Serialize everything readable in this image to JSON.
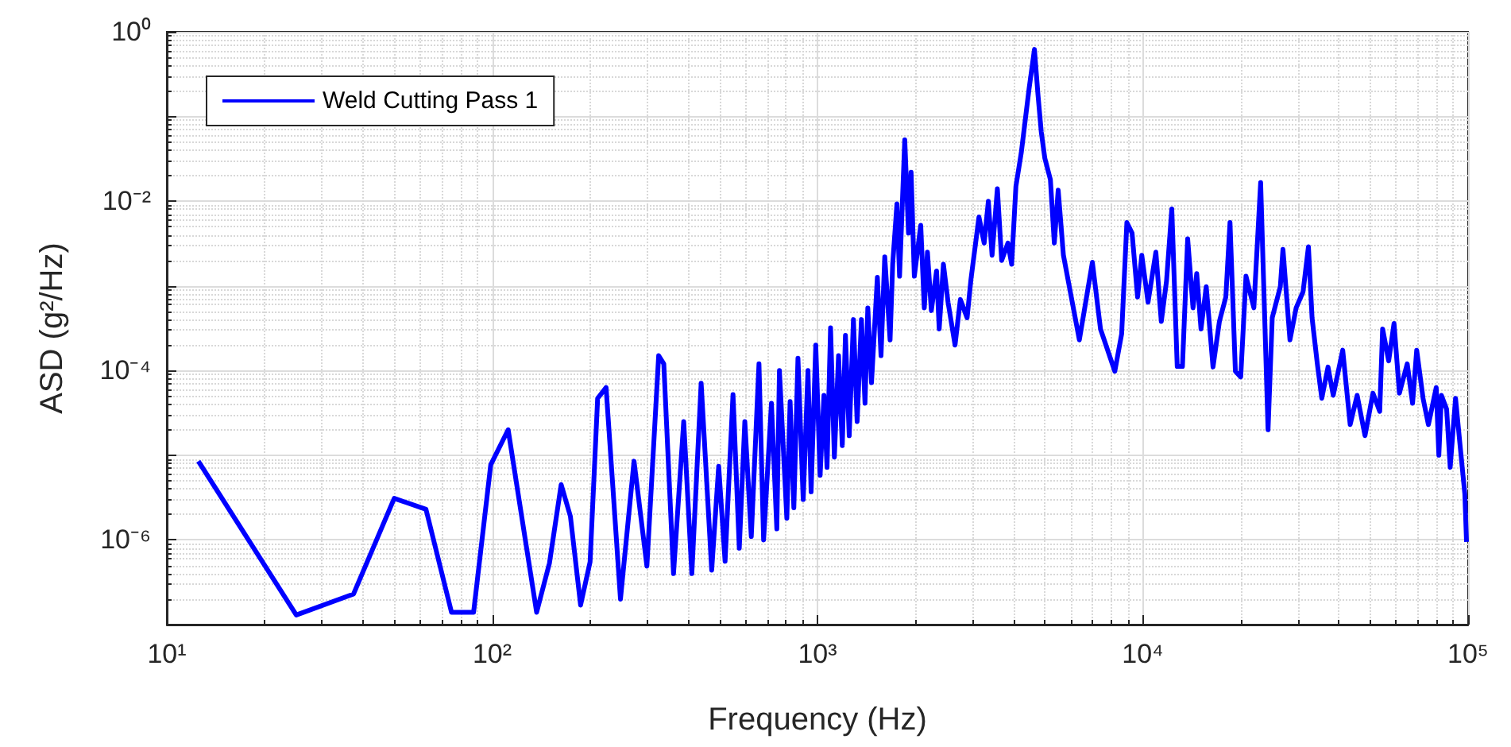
{
  "chart_data": {
    "type": "line",
    "xlabel": "Frequency (Hz)",
    "ylabel": "ASD (g²/Hz)",
    "log": "xy",
    "grid": true,
    "legend": "top left",
    "marker": "none",
    "line_style": "solid",
    "xlim": [
      10,
      100000
    ],
    "ylim": [
      1e-07,
      1
    ],
    "xticks": [
      {
        "value": 10,
        "label": "10¹"
      },
      {
        "value": 100,
        "label": "10²"
      },
      {
        "value": 1000,
        "label": "10³"
      },
      {
        "value": 10000,
        "label": "10⁴"
      },
      {
        "value": 100000,
        "label": "10⁵"
      }
    ],
    "yticks": [
      {
        "value": 1e-07,
        "label": null
      },
      {
        "value": 1e-06,
        "label": "10⁻⁶"
      },
      {
        "value": 1e-05,
        "label": null
      },
      {
        "value": 0.0001,
        "label": "10⁻⁴"
      },
      {
        "value": 0.001,
        "label": null
      },
      {
        "value": 0.01,
        "label": "10⁻²"
      },
      {
        "value": 0.1,
        "label": null
      },
      {
        "value": 1,
        "label": "10⁰"
      }
    ],
    "series": [
      {
        "name": "Weld Cutting Pass 1",
        "color": "#0000ff",
        "x": [
          12.5,
          25,
          37.5,
          50,
          62.6,
          75,
          87.7,
          99,
          112,
          137,
          150,
          163,
          174,
          187,
          200,
          211,
          224,
          248,
          273,
          299,
          325,
          337,
          361,
          388,
          411,
          439,
          473,
          497,
          520,
          550,
          575,
          598,
          626,
          661,
          683,
          722,
          750,
          764,
          805,
          824,
          846,
          871,
          904,
          935,
          956,
          988,
          1019,
          1047,
          1070,
          1097,
          1127,
          1161,
          1192,
          1219,
          1252,
          1290,
          1324,
          1365,
          1400,
          1428,
          1466,
          1528,
          1568,
          1610,
          1672,
          1703,
          1755,
          1788,
          1855,
          1905,
          1940,
          1985,
          2077,
          2130,
          2178,
          2239,
          2323,
          2367,
          2439,
          2520,
          2648,
          2749,
          2884,
          2964,
          3136,
          3254,
          3352,
          3441,
          3573,
          3683,
          3850,
          3953,
          4074,
          4230,
          4359,
          4470,
          4645,
          4763,
          4874,
          5000,
          5200,
          5346,
          5495,
          5702,
          6383,
          7000,
          7413,
          8204,
          8610,
          8935,
          9270,
          9638,
          9930,
          10380,
          10970,
          11400,
          11830,
          12280,
          12760,
          13240,
          13740,
          14270,
          14650,
          15100,
          15670,
          16440,
          17200,
          18000,
          18540,
          19260,
          20000,
          20760,
          21950,
          23030,
          24270,
          25000,
          26470,
          26970,
          28340,
          29610,
          31090,
          32300,
          33140,
          34400,
          35500,
          37100,
          38500,
          41170,
          43400,
          45600,
          48200,
          51000,
          53500,
          54600,
          57000,
          59200,
          61500,
          65000,
          67500,
          69500,
          72700,
          75500,
          79800,
          81300,
          82800,
          85900,
          88100,
          91500,
          94500,
          97700,
          98900
        ],
        "values": [
          8.5e-06,
          1.3e-07,
          2.3e-07,
          3.1e-06,
          2.3e-06,
          1.4e-07,
          1.4e-07,
          7.7e-06,
          2e-05,
          1.4e-07,
          5.3e-07,
          4.5e-06,
          1.9e-06,
          1.7e-07,
          5.5e-07,
          4.7e-05,
          6.3e-05,
          2e-07,
          8.5e-06,
          4.9e-07,
          0.00015,
          0.00012,
          4e-07,
          2.5e-05,
          4e-07,
          7.1e-05,
          4.4e-07,
          7.4e-06,
          5.6e-07,
          5.2e-05,
          8e-07,
          2.5e-05,
          1.1e-06,
          0.00012,
          1e-06,
          4.1e-05,
          1.35e-06,
          0.0001,
          1.8e-06,
          4.3e-05,
          2.4e-06,
          0.00014,
          3e-06,
          0.0001,
          3.7e-06,
          0.0002,
          5.8e-06,
          5.1e-05,
          7.2e-06,
          0.00032,
          9.5e-06,
          0.00015,
          1.3e-05,
          0.00026,
          1.7e-05,
          0.0004,
          2.5e-05,
          0.0004,
          4.1e-05,
          0.00055,
          7.2e-05,
          0.00126,
          0.00015,
          0.0022,
          0.00023,
          0.0018,
          0.0093,
          0.0013,
          0.053,
          0.0042,
          0.022,
          0.0013,
          0.0052,
          0.00055,
          0.0025,
          0.00051,
          0.0015,
          0.00031,
          0.0018,
          0.00064,
          0.0002,
          0.00069,
          0.00042,
          0.0012,
          0.0065,
          0.0032,
          0.01,
          0.0023,
          0.014,
          0.002,
          0.0032,
          0.0018,
          0.015,
          0.037,
          0.095,
          0.21,
          0.62,
          0.18,
          0.066,
          0.032,
          0.018,
          0.0032,
          0.0135,
          0.0023,
          0.00023,
          0.0019,
          0.00031,
          9.8e-05,
          0.00027,
          0.0056,
          0.0042,
          0.00074,
          0.0023,
          0.00064,
          0.0025,
          0.00038,
          0.00114,
          0.0081,
          0.000112,
          0.000112,
          0.0036,
          0.00055,
          0.0014,
          0.00031,
          0.00098,
          0.00011,
          0.00038,
          0.00074,
          0.0056,
          9.8e-05,
          8.4e-05,
          0.0013,
          0.00055,
          0.0166,
          2e-05,
          0.00042,
          0.00098,
          0.0027,
          0.00023,
          0.00055,
          0.00085,
          0.0029,
          0.00042,
          0.00012,
          4.7e-05,
          0.00011,
          5.1e-05,
          0.000174,
          2.3e-05,
          5.1e-05,
          1.7e-05,
          5.4e-05,
          3.3e-05,
          0.00031,
          0.00013,
          0.00036,
          5.4e-05,
          0.00012,
          4.1e-05,
          0.000174,
          4.7e-05,
          2.3e-05,
          6.3e-05,
          1e-05,
          5.1e-05,
          3.5e-05,
          7.2e-06,
          4.7e-05,
          1.3e-05,
          3.5e-06,
          9.5e-07
        ]
      }
    ]
  }
}
